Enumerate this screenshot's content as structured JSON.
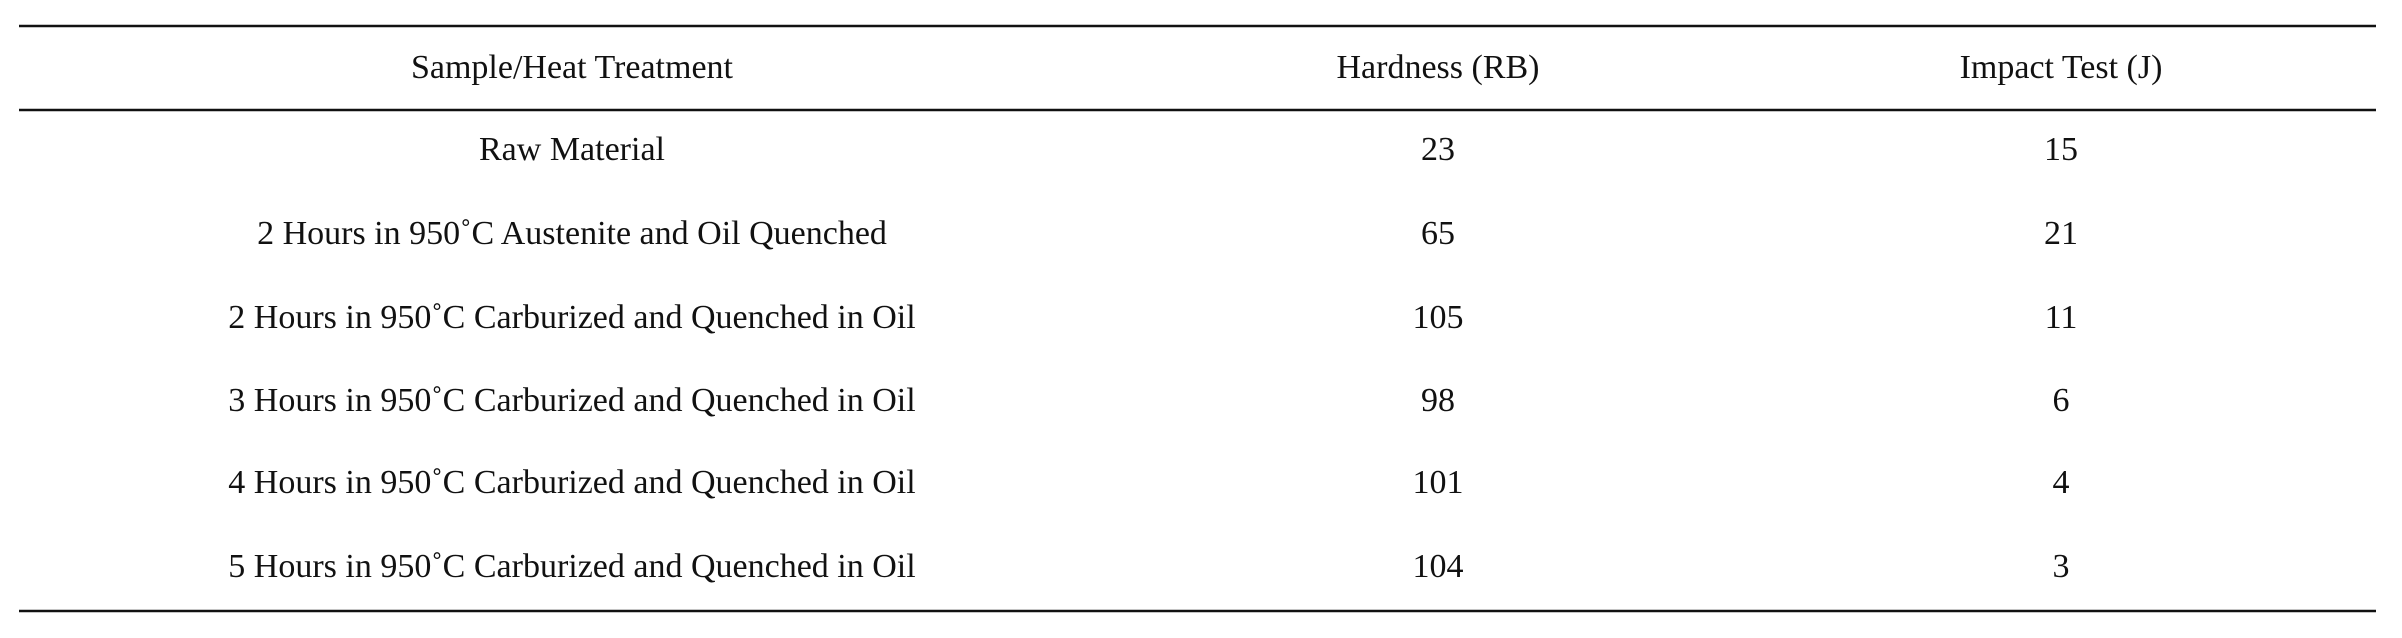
{
  "table": {
    "header": [
      "Sample/Heat Treatment",
      "Hardness (RB)",
      "Impact Test (J)"
    ],
    "rows": [
      [
        "Raw Material",
        "23",
        "15"
      ],
      [
        "2 Hours in 950˚C Austenite and Oil Quenched",
        "65",
        "21"
      ],
      [
        "2 Hours in 950˚C Carburized and Quenched in Oil",
        "105",
        "11"
      ],
      [
        "3 Hours in 950˚C Carburized and Quenched in Oil",
        "98",
        "6"
      ],
      [
        "4 Hours in 950˚C Carburized and Quenched in Oil",
        "101",
        "4"
      ],
      [
        "5 Hours in 950˚C Carburized and Quenched in Oil",
        "104",
        "3"
      ]
    ]
  }
}
